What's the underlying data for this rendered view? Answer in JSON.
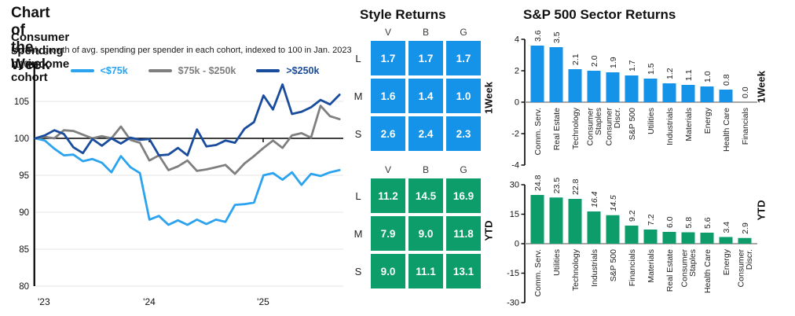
{
  "left_panel": {
    "title": "Chart of the Week",
    "chart_title": "Consumer spending by income cohort",
    "subtitle": "Monthly growth of avg. spending per spender in each cohort, indexed to 100 in Jan. 2023"
  },
  "style_panel": {
    "title": "Style Returns"
  },
  "sector_panel": {
    "title": "S&P 500 Sector Returns"
  },
  "colors": {
    "blue": "#1593e8",
    "green": "#0c9d6b",
    "light_blue": "#2ba3ef",
    "gray_line": "#7f7f7f",
    "dark_blue": "#1a4c9e"
  },
  "chart_data": [
    {
      "id": "consumer-spending",
      "type": "line",
      "title": "Consumer spending by income cohort",
      "x_tick_labels": [
        "'23",
        "'24",
        "'25"
      ],
      "ylim": [
        80,
        110
      ],
      "yticks": [
        80,
        85,
        90,
        95,
        100,
        105,
        110
      ],
      "baseline": 100,
      "grid": true,
      "legend_position": "top",
      "series": [
        {
          "name": "<$75k",
          "color": "#2ba3ef",
          "values": [
            100,
            99.7,
            98.6,
            97.7,
            97.8,
            96.9,
            97.2,
            96.7,
            95.4,
            97.6,
            96.1,
            95.3,
            89.0,
            89.5,
            88.3,
            88.9,
            88.3,
            89.0,
            88.4,
            89.0,
            88.7,
            91.0,
            91.1,
            91.3,
            95.0,
            95.3,
            94.4,
            95.4,
            93.7,
            95.2,
            94.9,
            95.4,
            95.7
          ]
        },
        {
          "name": "$75k - $250k",
          "color": "#7f7f7f",
          "values": [
            100,
            100.2,
            100.0,
            101.1,
            101.0,
            100.5,
            100.0,
            100.3,
            100.0,
            101.6,
            99.8,
            99.4,
            97.0,
            97.7,
            95.7,
            96.2,
            97.0,
            95.6,
            95.8,
            96.1,
            96.4,
            95.2,
            96.6,
            97.6,
            98.7,
            99.7,
            98.7,
            100.4,
            100.7,
            100.1,
            104.4,
            103.0,
            102.6
          ]
        },
        {
          "name": ">$250k",
          "color": "#1a4c9e",
          "values": [
            100,
            100.4,
            101.1,
            100.6,
            98.8,
            98.0,
            99.9,
            99.0,
            100.0,
            99.3,
            100.1,
            99.8,
            99.9,
            97.7,
            97.8,
            98.7,
            97.7,
            101.2,
            98.9,
            99.1,
            99.7,
            99.4,
            101.3,
            102.2,
            105.8,
            103.9,
            107.3,
            103.3,
            103.6,
            104.2,
            105.2,
            104.6,
            105.9
          ]
        }
      ]
    },
    {
      "id": "style-1week",
      "type": "heatmap",
      "label": "1Week",
      "columns": [
        "V",
        "B",
        "G"
      ],
      "rows": [
        "L",
        "M",
        "S"
      ],
      "values": [
        [
          1.7,
          1.7,
          1.7
        ],
        [
          1.6,
          1.4,
          1.0
        ],
        [
          2.6,
          2.4,
          2.3
        ]
      ],
      "color": "#1593e8"
    },
    {
      "id": "style-ytd",
      "type": "heatmap",
      "label": "YTD",
      "columns": [
        "V",
        "B",
        "G"
      ],
      "rows": [
        "L",
        "M",
        "S"
      ],
      "values": [
        [
          11.2,
          14.5,
          16.9
        ],
        [
          7.9,
          9.0,
          11.8
        ],
        [
          9.0,
          11.1,
          13.1
        ]
      ],
      "color": "#0c9d6b"
    },
    {
      "id": "sector-1week",
      "type": "bar",
      "label": "1Week",
      "categories": [
        "Comm. Serv.",
        "Real Estate",
        "Technology",
        "Consumer\nStaples",
        "Consumer\nDiscr.",
        "S&P 500",
        "Utilities",
        "Industrials",
        "Materials",
        "Energy",
        "Health Care",
        "Financials"
      ],
      "values": [
        3.6,
        3.5,
        2.1,
        2.0,
        1.9,
        1.7,
        1.5,
        1.2,
        1.1,
        1.0,
        0.8,
        0.0
      ],
      "yticks": [
        4,
        2,
        0,
        -2,
        -4
      ],
      "ylim": [
        -4,
        4
      ],
      "color": "#1593e8",
      "italic_value_indices": []
    },
    {
      "id": "sector-ytd",
      "type": "bar",
      "label": "YTD",
      "categories": [
        "Comm. Serv.",
        "Utilities",
        "Technology",
        "Industrials",
        "S&P 500",
        "Financials",
        "Materials",
        "Real Estate",
        "Consumer\nStaples",
        "Health Care",
        "Energy",
        "Consumer\nDiscr."
      ],
      "values": [
        24.8,
        23.5,
        22.8,
        16.4,
        14.5,
        9.2,
        7.2,
        6.0,
        5.8,
        5.6,
        3.4,
        2.9
      ],
      "yticks": [
        30,
        15,
        0,
        -15,
        -30
      ],
      "ylim": [
        -30,
        30
      ],
      "color": "#0c9d6b",
      "italic_value_indices": [
        3,
        4
      ]
    }
  ]
}
